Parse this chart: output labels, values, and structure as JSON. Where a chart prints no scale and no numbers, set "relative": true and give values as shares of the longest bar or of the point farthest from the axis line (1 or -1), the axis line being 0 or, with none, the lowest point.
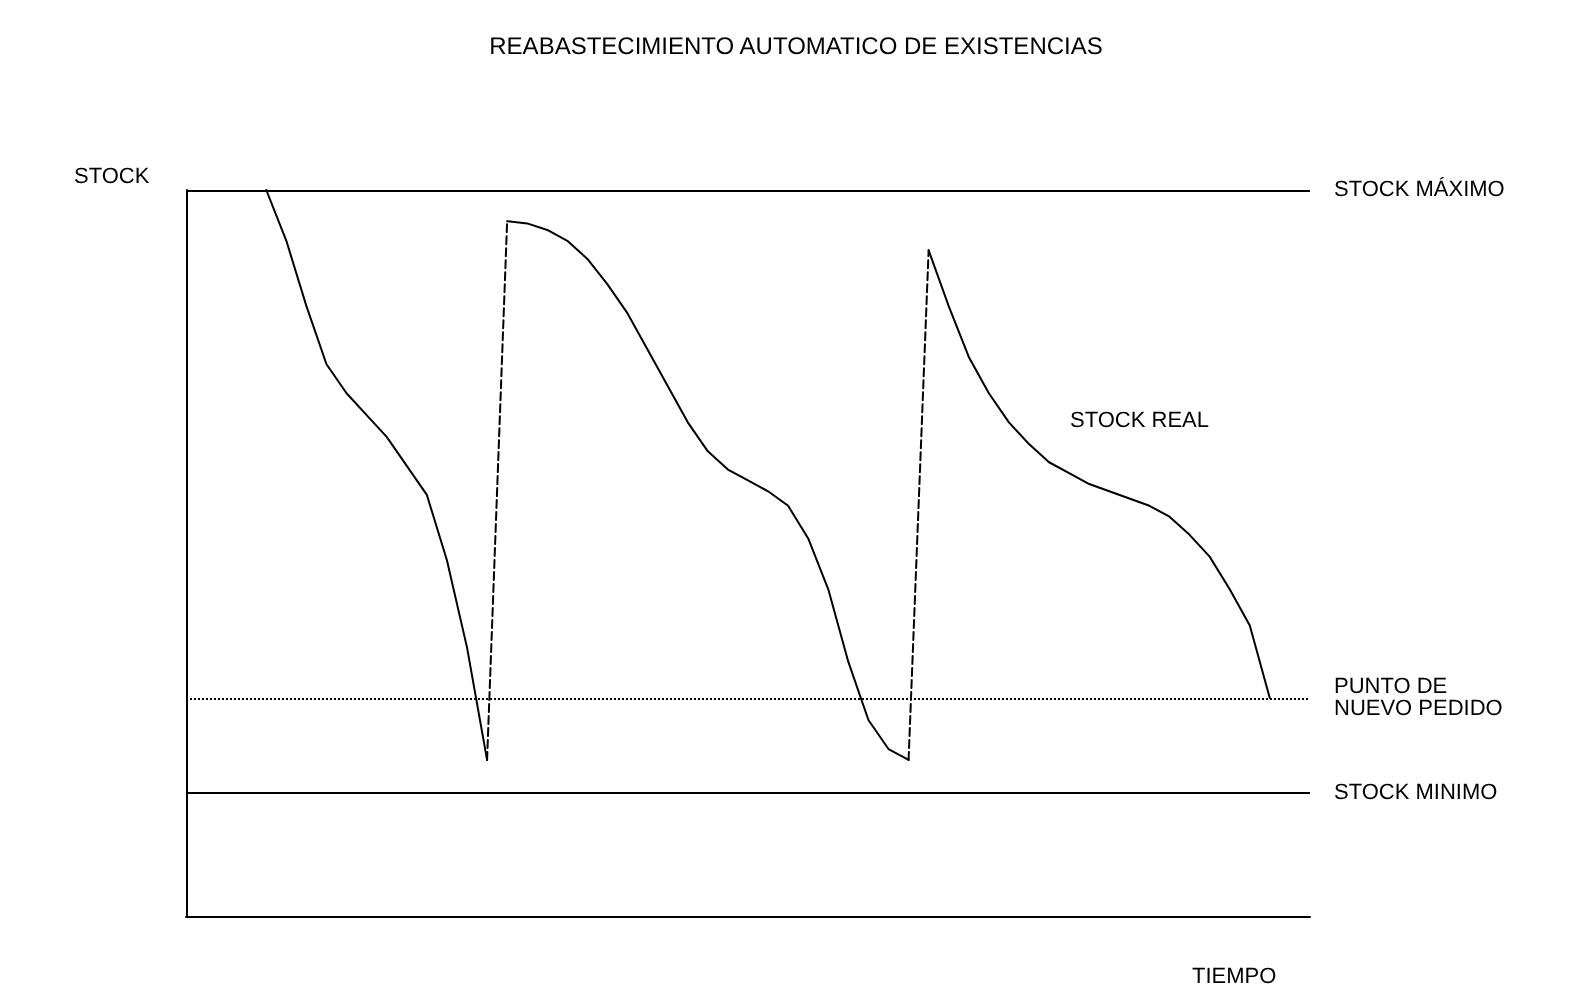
{
  "chart_data": {
    "type": "line",
    "title": "REABASTECIMIENTO AUTOMATICO DE EXISTENCIAS",
    "xlabel": "TIEMPO",
    "ylabel": "STOCK",
    "relative": true,
    "grid": false,
    "marker": "none",
    "categories": [
      null,
      null,
      null,
      null,
      null,
      null,
      null,
      null,
      null,
      null,
      null,
      null,
      null,
      null,
      null,
      null,
      null,
      null,
      null,
      null,
      null,
      null,
      null,
      null,
      null,
      null,
      null,
      null,
      null,
      null,
      null,
      null,
      null,
      null,
      null,
      null,
      null,
      null,
      null,
      null,
      null,
      null,
      null,
      null,
      null,
      null,
      null,
      null,
      null,
      null,
      null,
      null,
      null,
      null,
      null,
      null,
      null
    ],
    "series": [
      {
        "color": "#000000",
        "line_style": "solid",
        "values": [
          null,
          null,
          null,
          null,
          1,
          0.93,
          0.84,
          0.76,
          0.72,
          0.69,
          0.66,
          0.62,
          0.58,
          0.49,
          0.37,
          0.215,
          null,
          null,
          null,
          null,
          null,
          null,
          null,
          null,
          null,
          null,
          null,
          null,
          null,
          null,
          null,
          null,
          null,
          null,
          null,
          null,
          null,
          null,
          null,
          null,
          null,
          null,
          null,
          null,
          null,
          null,
          null,
          null,
          null,
          null,
          null,
          null,
          null,
          null,
          null,
          null,
          null
        ]
      },
      {
        "color": "#000000",
        "line_style": "dashed",
        "values": [
          null,
          null,
          null,
          null,
          null,
          null,
          null,
          null,
          null,
          null,
          null,
          null,
          null,
          null,
          null,
          0.215,
          0.957,
          null,
          null,
          null,
          null,
          null,
          null,
          null,
          null,
          null,
          null,
          null,
          null,
          null,
          null,
          null,
          null,
          null,
          null,
          null,
          null,
          null,
          null,
          null,
          null,
          null,
          null,
          null,
          null,
          null,
          null,
          null,
          null,
          null,
          null,
          null,
          null,
          null,
          null,
          null,
          null
        ]
      },
      {
        "color": "#000000",
        "line_style": "solid",
        "values": [
          null,
          null,
          null,
          null,
          null,
          null,
          null,
          null,
          null,
          null,
          null,
          null,
          null,
          null,
          null,
          null,
          0.957,
          0.954,
          0.945,
          0.93,
          0.905,
          0.87,
          0.83,
          0.78,
          0.73,
          0.68,
          0.64,
          0.615,
          0.6,
          0.585,
          0.565,
          0.52,
          0.45,
          0.35,
          0.27,
          0.23,
          0.215,
          null,
          null,
          null,
          null,
          null,
          null,
          null,
          null,
          null,
          null,
          null,
          null,
          null,
          null,
          null,
          null,
          null,
          null,
          null,
          null
        ]
      },
      {
        "color": "#000000",
        "line_style": "dashed",
        "values": [
          null,
          null,
          null,
          null,
          null,
          null,
          null,
          null,
          null,
          null,
          null,
          null,
          null,
          null,
          null,
          null,
          null,
          null,
          null,
          null,
          null,
          null,
          null,
          null,
          null,
          null,
          null,
          null,
          null,
          null,
          null,
          null,
          null,
          null,
          null,
          null,
          0.215,
          0.917,
          null,
          null,
          null,
          null,
          null,
          null,
          null,
          null,
          null,
          null,
          null,
          null,
          null,
          null,
          null,
          null,
          null,
          null,
          null
        ]
      },
      {
        "color": "#000000",
        "line_style": "solid",
        "values": [
          null,
          null,
          null,
          null,
          null,
          null,
          null,
          null,
          null,
          null,
          null,
          null,
          null,
          null,
          null,
          null,
          null,
          null,
          null,
          null,
          null,
          null,
          null,
          null,
          null,
          null,
          null,
          null,
          null,
          null,
          null,
          null,
          null,
          null,
          null,
          null,
          null,
          0.917,
          0.84,
          0.77,
          0.72,
          0.68,
          0.65,
          0.625,
          0.61,
          0.595,
          0.585,
          0.575,
          0.565,
          0.55,
          0.525,
          0.495,
          0.45,
          0.4,
          0.3,
          null,
          null
        ]
      }
    ],
    "ref_lines": [
      {
        "axis": "y",
        "value": 1,
        "label": "STOCK MÁXIMO",
        "color": "#000000",
        "line_style": "solid"
      },
      {
        "axis": "y",
        "value": 0.3,
        "label": "PUNTO DE\nNUEVO PEDIDO",
        "color": "#000000",
        "line_style": "dotted"
      },
      {
        "axis": "y",
        "value": 0.17,
        "label": "STOCK MINIMO",
        "color": "#000000",
        "line_style": "solid"
      }
    ],
    "annotations": [
      "STOCK REAL"
    ]
  }
}
